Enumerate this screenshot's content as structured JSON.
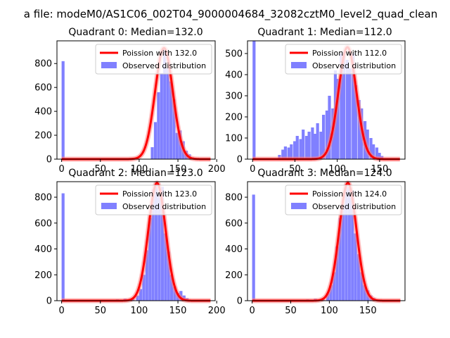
{
  "figure": {
    "suptitle": "a file: modeM0/AS1C06_002T04_9000004684_32082cztM0_level2_quad_clean"
  },
  "colors": {
    "bars": "#8080ff",
    "curve": "#ff0000",
    "curve_glow": "#ff8080",
    "axis": "#000000"
  },
  "chart_data": [
    {
      "type": "bar",
      "title": "Quadrant 0: Median=132.0",
      "xlim": [
        -6,
        198
      ],
      "ylim": [
        0,
        990
      ],
      "xticks": [
        0,
        50,
        100,
        150,
        200
      ],
      "yticks": [
        0,
        200,
        400,
        600,
        800
      ],
      "bin_width": 3.8,
      "bins": [
        [
          0,
          820
        ],
        [
          115,
          100
        ],
        [
          119,
          310
        ],
        [
          123,
          560
        ],
        [
          127,
          720
        ],
        [
          131,
          920
        ],
        [
          135,
          760
        ],
        [
          139,
          650
        ],
        [
          143,
          500
        ],
        [
          147,
          220
        ],
        [
          151,
          240
        ],
        [
          155,
          150
        ],
        [
          159,
          70
        ],
        [
          163,
          40
        ],
        [
          167,
          15
        ]
      ],
      "curve_peak": {
        "mu": 132.0,
        "peak": 930
      },
      "legend": [
        "Poission with 132.0",
        "Observed distribution"
      ]
    },
    {
      "type": "bar",
      "title": "Quadrant 1: Median=112.0",
      "xlim": [
        -6,
        180
      ],
      "ylim": [
        0,
        560
      ],
      "xticks": [
        0,
        50,
        100,
        150
      ],
      "yticks": [
        0,
        100,
        200,
        300,
        400,
        500
      ],
      "bin_width": 3.5,
      "bins": [
        [
          0,
          560
        ],
        [
          30,
          20
        ],
        [
          34,
          45
        ],
        [
          37,
          60
        ],
        [
          41,
          55
        ],
        [
          44,
          70
        ],
        [
          48,
          85
        ],
        [
          51,
          110
        ],
        [
          55,
          95
        ],
        [
          58,
          140
        ],
        [
          62,
          110
        ],
        [
          65,
          130
        ],
        [
          69,
          150
        ],
        [
          72,
          120
        ],
        [
          75,
          170
        ],
        [
          79,
          130
        ],
        [
          82,
          210
        ],
        [
          86,
          230
        ],
        [
          89,
          300
        ],
        [
          93,
          240
        ],
        [
          96,
          420
        ],
        [
          99,
          380
        ],
        [
          103,
          500
        ],
        [
          106,
          510
        ],
        [
          110,
          470
        ],
        [
          113,
          430
        ],
        [
          117,
          500
        ],
        [
          120,
          350
        ],
        [
          124,
          280
        ],
        [
          127,
          240
        ],
        [
          131,
          180
        ],
        [
          134,
          140
        ],
        [
          138,
          100
        ],
        [
          141,
          70
        ],
        [
          145,
          55
        ],
        [
          148,
          30
        ],
        [
          151,
          15
        ]
      ],
      "curve_peak": {
        "mu": 112.0,
        "peak": 530
      },
      "legend": [
        "Poission with 112.0",
        "Observed distribution"
      ]
    },
    {
      "type": "bar",
      "title": "Quadrant 2: Median=123.0",
      "xlim": [
        -6,
        198
      ],
      "ylim": [
        0,
        920
      ],
      "xticks": [
        0,
        50,
        100,
        150,
        200
      ],
      "yticks": [
        0,
        200,
        400,
        600,
        800
      ],
      "bin_width": 3.8,
      "bins": [
        [
          0,
          830
        ],
        [
          60,
          5
        ],
        [
          70,
          10
        ],
        [
          80,
          15
        ],
        [
          90,
          20
        ],
        [
          96,
          40
        ],
        [
          100,
          90
        ],
        [
          104,
          200
        ],
        [
          108,
          390
        ],
        [
          112,
          640
        ],
        [
          116,
          860
        ],
        [
          120,
          900
        ],
        [
          124,
          830
        ],
        [
          128,
          880
        ],
        [
          132,
          520
        ],
        [
          136,
          380
        ],
        [
          140,
          200
        ],
        [
          144,
          110
        ],
        [
          148,
          60
        ],
        [
          152,
          75
        ],
        [
          156,
          40
        ],
        [
          160,
          20
        ]
      ],
      "curve_peak": {
        "mu": 123.0,
        "peak": 910
      },
      "legend": [
        "Poission with 123.0",
        "Observed distribution"
      ]
    },
    {
      "type": "bar",
      "title": "Quadrant 3: Median=124.0",
      "xlim": [
        -6,
        198
      ],
      "ylim": [
        0,
        920
      ],
      "xticks": [
        0,
        50,
        100,
        150
      ],
      "yticks": [
        0,
        200,
        400,
        600,
        800
      ],
      "bin_width": 3.8,
      "bins": [
        [
          0,
          820
        ],
        [
          70,
          10
        ],
        [
          80,
          15
        ],
        [
          90,
          20
        ],
        [
          96,
          60
        ],
        [
          100,
          120
        ],
        [
          104,
          220
        ],
        [
          108,
          420
        ],
        [
          112,
          640
        ],
        [
          116,
          740
        ],
        [
          120,
          900
        ],
        [
          124,
          880
        ],
        [
          128,
          850
        ],
        [
          132,
          520
        ],
        [
          136,
          360
        ],
        [
          140,
          220
        ],
        [
          144,
          120
        ],
        [
          148,
          80
        ],
        [
          152,
          40
        ],
        [
          156,
          20
        ]
      ],
      "curve_peak": {
        "mu": 124.0,
        "peak": 910
      },
      "legend": [
        "Poission with 124.0",
        "Observed distribution"
      ]
    }
  ]
}
